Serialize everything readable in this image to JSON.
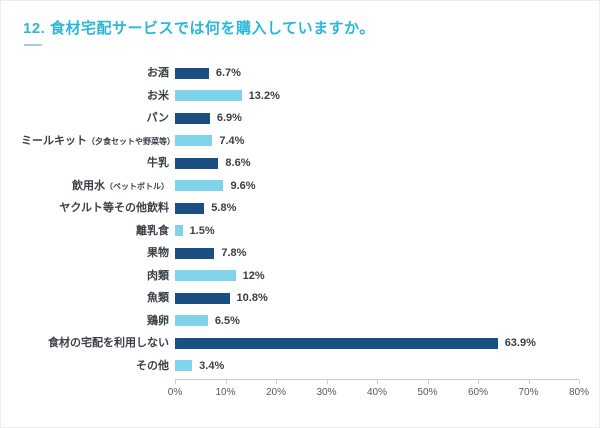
{
  "page": {
    "title": "12. 食材宅配サービスでは何を購入していますか。"
  },
  "chart_data": {
    "type": "bar",
    "orientation": "horizontal",
    "title": "12. 食材宅配サービスでは何を購入していますか。",
    "categories": [
      "お酒",
      "お米",
      "パン",
      "ミールキット",
      "牛乳",
      "飲用水",
      "ヤクルト等その他飲料",
      "離乳食",
      "果物",
      "肉類",
      "魚類",
      "鶏卵",
      "食材の宅配を利用しない",
      "その他"
    ],
    "sublabels": [
      "",
      "",
      "",
      "（夕食セットや野菜等）",
      "",
      "（ペットボトル）",
      "",
      "",
      "",
      "",
      "",
      "",
      "",
      ""
    ],
    "values": [
      6.7,
      13.2,
      6.9,
      7.4,
      8.6,
      9.6,
      5.8,
      1.5,
      7.8,
      12,
      10.8,
      6.5,
      63.9,
      3.4
    ],
    "value_labels": [
      "6.7%",
      "13.2%",
      "6.9%",
      "7.4%",
      "8.6%",
      "9.6%",
      "5.8%",
      "1.5%",
      "7.8%",
      "12%",
      "10.8%",
      "6.5%",
      "63.9%",
      "3.4%"
    ],
    "xlim": [
      0,
      80
    ],
    "x_ticks": [
      "0%",
      "10%",
      "20%",
      "30%",
      "40%",
      "50%",
      "60%",
      "70%",
      "80%"
    ],
    "bar_colors_alternating": [
      "#1b4e82",
      "#7fd4ea"
    ],
    "title_color": "#2bb7dd",
    "grid": false,
    "legend": false
  }
}
